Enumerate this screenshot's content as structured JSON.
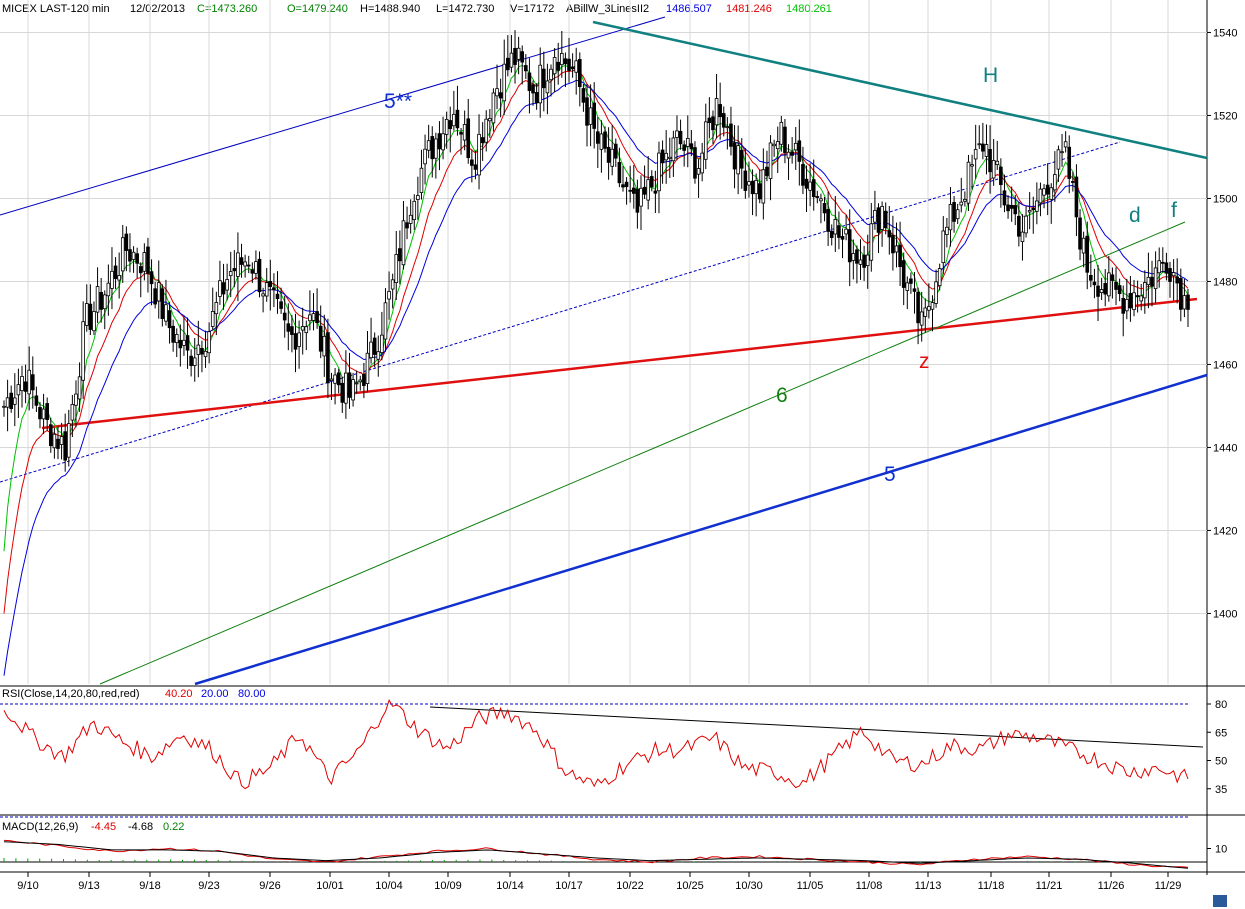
{
  "header": {
    "symbol": "MICEX LAST-120 min",
    "date": "12/02/2013",
    "close": "C=1473.260",
    "open": "O=1479.240",
    "high": "H=1488.940",
    "low": "L=1472.730",
    "volume": "V=17172",
    "indicator": "ABillW_3LinesII2",
    "ind_v1": "1486.507",
    "ind_v2": "1481.246",
    "ind_v3": "1480.261"
  },
  "rsi_header": {
    "label": "RSI(Close,14,20,80,red,red)",
    "value": "40.20",
    "low": "20.00",
    "high": "80.00"
  },
  "macd_header": {
    "label": "MACD(12,26,9)",
    "v1": "-4.45",
    "v2": "-4.68",
    "v3": "0.22"
  },
  "colors": {
    "candle": "#000000",
    "fast_ma": "#00c000",
    "mid_ma": "#e00000",
    "slow_ma": "#0000e0",
    "red_trend": "#e01010",
    "blue_trend": "#1030d0",
    "teal_trend": "#108080",
    "green_trend": "#108010",
    "rsi": "#e00000",
    "channel": "#0000c0"
  },
  "chart_data": [
    {
      "type": "candlestick",
      "title": "",
      "x_ticks": [
        "9/10",
        "9/13",
        "9/18",
        "9/23",
        "9/26",
        "10/01",
        "10/04",
        "10/09",
        "10/14",
        "10/17",
        "10/22",
        "10/25",
        "10/30",
        "11/05",
        "11/08",
        "11/13",
        "11/18",
        "11/21",
        "11/26",
        "11/29"
      ],
      "y_ticks": [
        1400,
        1420,
        1440,
        1460,
        1480,
        1500,
        1520,
        1540
      ],
      "ylim": [
        1383,
        1543
      ],
      "grid": true,
      "close_path": [
        {
          "x": "9/10",
          "y": 1450
        },
        {
          "x": "9/11",
          "y": 1458
        },
        {
          "x": "9/12",
          "y": 1446
        },
        {
          "x": "9/13",
          "y": 1440
        },
        {
          "x": "9/16",
          "y": 1470
        },
        {
          "x": "9/17",
          "y": 1478
        },
        {
          "x": "9/18",
          "y": 1488
        },
        {
          "x": "9/19",
          "y": 1484
        },
        {
          "x": "9/20",
          "y": 1470
        },
        {
          "x": "9/23",
          "y": 1462
        },
        {
          "x": "9/24",
          "y": 1468
        },
        {
          "x": "9/25",
          "y": 1482
        },
        {
          "x": "9/26",
          "y": 1486
        },
        {
          "x": "9/27",
          "y": 1476
        },
        {
          "x": "9/30",
          "y": 1466
        },
        {
          "x": "10/01",
          "y": 1473
        },
        {
          "x": "10/02",
          "y": 1458
        },
        {
          "x": "10/03",
          "y": 1452
        },
        {
          "x": "10/04",
          "y": 1462
        },
        {
          "x": "10/07",
          "y": 1478
        },
        {
          "x": "10/08",
          "y": 1502
        },
        {
          "x": "10/09",
          "y": 1513
        },
        {
          "x": "10/10",
          "y": 1522
        },
        {
          "x": "10/11",
          "y": 1510
        },
        {
          "x": "10/14",
          "y": 1526
        },
        {
          "x": "10/15",
          "y": 1534
        },
        {
          "x": "10/16",
          "y": 1526
        },
        {
          "x": "10/17",
          "y": 1536
        },
        {
          "x": "10/18",
          "y": 1530
        },
        {
          "x": "10/21",
          "y": 1514
        },
        {
          "x": "10/22",
          "y": 1506
        },
        {
          "x": "10/23",
          "y": 1496
        },
        {
          "x": "10/24",
          "y": 1506
        },
        {
          "x": "10/25",
          "y": 1514
        },
        {
          "x": "10/28",
          "y": 1508
        },
        {
          "x": "10/29",
          "y": 1524
        },
        {
          "x": "10/30",
          "y": 1508
        },
        {
          "x": "10/31",
          "y": 1502
        },
        {
          "x": "11/01",
          "y": 1516
        },
        {
          "x": "11/05",
          "y": 1508
        },
        {
          "x": "11/06",
          "y": 1500
        },
        {
          "x": "11/07",
          "y": 1490
        },
        {
          "x": "11/08",
          "y": 1486
        },
        {
          "x": "11/11",
          "y": 1498
        },
        {
          "x": "11/12",
          "y": 1482
        },
        {
          "x": "11/13",
          "y": 1468
        },
        {
          "x": "11/14",
          "y": 1490
        },
        {
          "x": "11/15",
          "y": 1502
        },
        {
          "x": "11/18",
          "y": 1514
        },
        {
          "x": "11/19",
          "y": 1500
        },
        {
          "x": "11/20",
          "y": 1492
        },
        {
          "x": "11/21",
          "y": 1504
        },
        {
          "x": "11/22",
          "y": 1510
        },
        {
          "x": "11/25",
          "y": 1484
        },
        {
          "x": "11/26",
          "y": 1478
        },
        {
          "x": "11/27",
          "y": 1476
        },
        {
          "x": "11/28",
          "y": 1480
        },
        {
          "x": "11/29",
          "y": 1486
        },
        {
          "x": "12/02",
          "y": 1473.26
        }
      ],
      "annotations": [
        {
          "text": "5**",
          "color": "#1030d0"
        },
        {
          "text": "H",
          "color": "#108080"
        },
        {
          "text": "d",
          "color": "#108080"
        },
        {
          "text": "f",
          "color": "#108080"
        },
        {
          "text": "z",
          "color": "#e01010"
        },
        {
          "text": "6",
          "color": "#108010"
        },
        {
          "text": "5",
          "color": "#1030d0"
        }
      ]
    },
    {
      "type": "line",
      "title": "",
      "y_ticks": [
        35,
        50,
        65,
        80
      ],
      "ylim": [
        20,
        80
      ],
      "series": [
        {
          "name": "RSI(Close,14,20,80,red,red)",
          "values": [
            78,
            62,
            52,
            70,
            60,
            52,
            64,
            56,
            38,
            46,
            64,
            40,
            55,
            82,
            66,
            56,
            72,
            76,
            66,
            44,
            36,
            48,
            55,
            56,
            62,
            46,
            44,
            38,
            52,
            66,
            50,
            48,
            58,
            56,
            64,
            62,
            56,
            50,
            44,
            46,
            40.2
          ]
        }
      ]
    },
    {
      "type": "line",
      "title": "",
      "y_ticks": [
        10
      ],
      "series": [
        {
          "name": "MACD(12,26,9)",
          "values": [
            16,
            12,
            8,
            10,
            8,
            2,
            0,
            4,
            8,
            10,
            6,
            2,
            0,
            3,
            4,
            2,
            0,
            -2,
            2,
            4,
            2,
            -2,
            -4.45
          ]
        },
        {
          "name": "",
          "values": [
            15,
            13,
            9,
            9,
            8,
            3,
            1,
            3,
            7,
            9,
            6,
            3,
            1,
            2,
            3,
            2,
            1,
            -1,
            1,
            3,
            2,
            -1,
            -4.68
          ]
        }
      ]
    }
  ]
}
